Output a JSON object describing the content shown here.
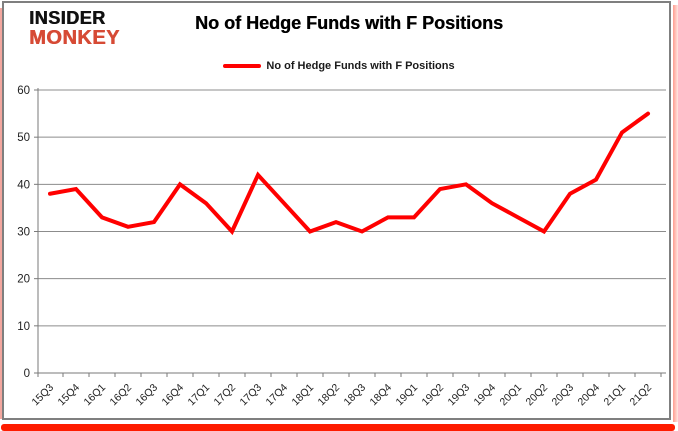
{
  "logo": {
    "line1": "INSIDER",
    "line2": "MONKEY",
    "accent_color": "#d64a35"
  },
  "header": {
    "title": "No of Hedge Funds with F Positions"
  },
  "legend": {
    "label": "No of Hedge Funds with F Positions",
    "line_color": "#ff0000"
  },
  "chart_data": {
    "type": "line",
    "title": "No of Hedge Funds with F Positions",
    "categories": [
      "15Q3",
      "15Q4",
      "16Q1",
      "16Q2",
      "16Q3",
      "16Q4",
      "17Q1",
      "17Q2",
      "17Q3",
      "17Q4",
      "18Q1",
      "18Q2",
      "18Q3",
      "18Q4",
      "19Q1",
      "19Q2",
      "19Q3",
      "19Q4",
      "20Q1",
      "20Q2",
      "20Q3",
      "20Q4",
      "21Q1",
      "21Q2"
    ],
    "series": [
      {
        "name": "No of Hedge Funds with F Positions",
        "color": "#ff0000",
        "values": [
          38,
          39,
          33,
          31,
          32,
          40,
          36,
          30,
          42,
          36,
          30,
          32,
          30,
          33,
          33,
          39,
          40,
          36,
          33,
          30,
          38,
          41,
          51,
          55
        ]
      }
    ],
    "xlabel": "",
    "ylabel": "",
    "ylim": [
      0,
      60
    ],
    "y_ticks": [
      0,
      10,
      20,
      30,
      40,
      50,
      60
    ],
    "grid": true,
    "legend_position": "top-center"
  },
  "colors": {
    "gridline": "#8c8c8c",
    "axis": "#7a7a7a",
    "tick_label": "#1f1f1f",
    "card_border": "#7f7f7f",
    "frame_red": "#fe1c00"
  }
}
